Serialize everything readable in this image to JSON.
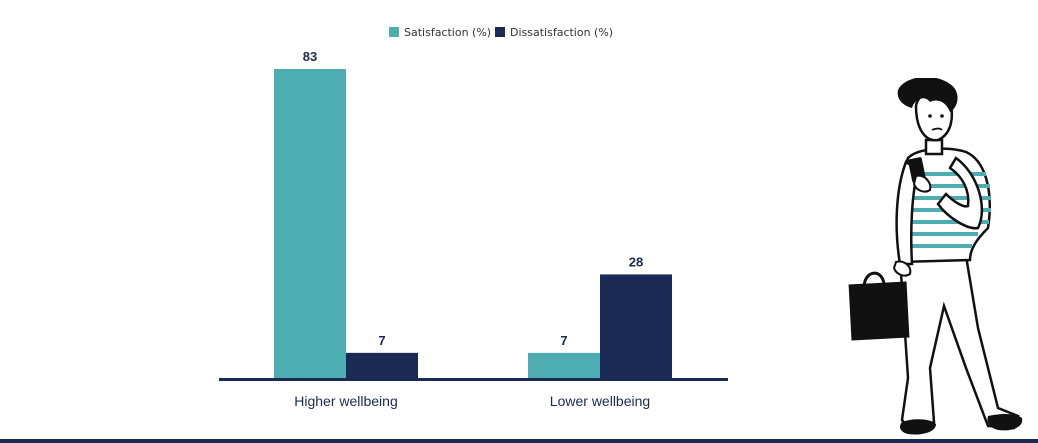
{
  "chart_data": {
    "type": "bar",
    "categories": [
      "Higher wellbeing",
      "Lower wellbeing"
    ],
    "series": [
      {
        "name": "Satisfaction (%)",
        "values": [
          83,
          7
        ],
        "color": "#4dadb0"
      },
      {
        "name": "Dissatisfaction (%)",
        "values": [
          7,
          28
        ],
        "color": "#1b2a55"
      }
    ],
    "title": "",
    "xlabel": "",
    "ylabel": "",
    "ylim": [
      0,
      83
    ],
    "grid": false,
    "legend_position": "top-center",
    "data_labels": true
  },
  "illustration": {
    "icon": "person-with-phone-and-bag-icon",
    "colors": {
      "outline": "#111111",
      "stripe": "#4dadb0",
      "bag": "#111111"
    }
  }
}
